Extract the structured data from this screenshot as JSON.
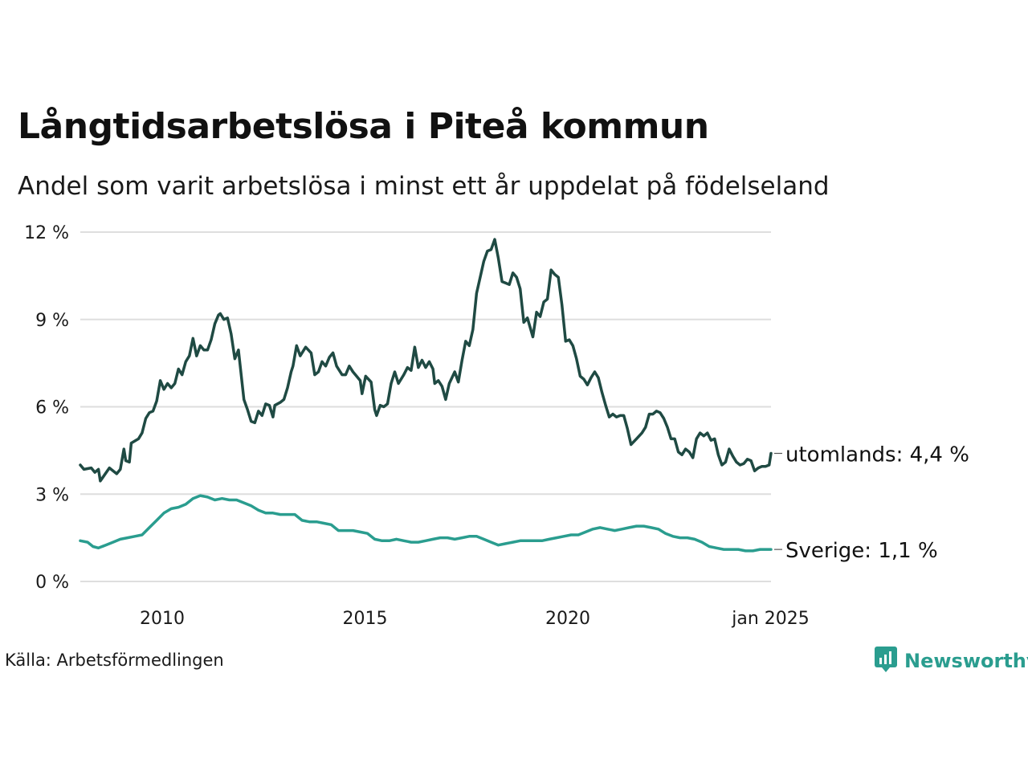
{
  "title": "Långtidsarbetslösa i Piteå kommun",
  "subtitle": "Andel som varit arbetslösa i minst ett år uppdelat på födelseland",
  "source": "Källa: Arbetsförmedlingen",
  "brand": {
    "name": "Newsworthy",
    "color": "#2a9d8f"
  },
  "chart_data": {
    "type": "line",
    "x_start": 2008.0,
    "x_end": 2025.0,
    "x_ticks": [
      {
        "x": 2010,
        "label": "2010"
      },
      {
        "x": 2015,
        "label": "2015"
      },
      {
        "x": 2020,
        "label": "2020"
      },
      {
        "x": 2025,
        "label": "jan 2025"
      }
    ],
    "ylim": [
      0,
      12
    ],
    "y_ticks": [
      {
        "y": 0,
        "label": "0 %"
      },
      {
        "y": 3,
        "label": "3 %"
      },
      {
        "y": 6,
        "label": "6 %"
      },
      {
        "y": 9,
        "label": "9 %"
      },
      {
        "y": 12,
        "label": "12 %"
      }
    ],
    "grid": true,
    "series": [
      {
        "name": "utomlands",
        "end_label": "utomlands: 4,4 %",
        "color": "#1f4a43",
        "points": [
          [
            2008.0,
            4.0
          ],
          [
            2008.1,
            3.85
          ],
          [
            2008.3,
            3.9
          ],
          [
            2008.4,
            3.75
          ],
          [
            2008.5,
            3.85
          ],
          [
            2008.55,
            3.45
          ],
          [
            2008.8,
            3.9
          ],
          [
            2009.0,
            3.7
          ],
          [
            2009.1,
            3.85
          ],
          [
            2009.2,
            4.55
          ],
          [
            2009.25,
            4.15
          ],
          [
            2009.35,
            4.1
          ],
          [
            2009.4,
            4.75
          ],
          [
            2009.6,
            4.9
          ],
          [
            2009.7,
            5.1
          ],
          [
            2009.8,
            5.6
          ],
          [
            2009.9,
            5.8
          ],
          [
            2010.0,
            5.85
          ],
          [
            2010.1,
            6.2
          ],
          [
            2010.2,
            6.9
          ],
          [
            2010.3,
            6.6
          ],
          [
            2010.4,
            6.8
          ],
          [
            2010.5,
            6.65
          ],
          [
            2010.6,
            6.8
          ],
          [
            2010.7,
            7.3
          ],
          [
            2010.8,
            7.1
          ],
          [
            2010.9,
            7.55
          ],
          [
            2011.0,
            7.75
          ],
          [
            2011.1,
            8.35
          ],
          [
            2011.2,
            7.75
          ],
          [
            2011.3,
            8.1
          ],
          [
            2011.4,
            7.95
          ],
          [
            2011.5,
            7.95
          ],
          [
            2011.6,
            8.3
          ],
          [
            2011.7,
            8.85
          ],
          [
            2011.8,
            9.15
          ],
          [
            2011.85,
            9.2
          ],
          [
            2011.95,
            9.0
          ],
          [
            2012.05,
            9.05
          ],
          [
            2012.15,
            8.5
          ],
          [
            2012.25,
            7.65
          ],
          [
            2012.35,
            7.95
          ],
          [
            2012.5,
            6.25
          ],
          [
            2012.6,
            5.9
          ],
          [
            2012.7,
            5.5
          ],
          [
            2012.8,
            5.45
          ],
          [
            2012.9,
            5.85
          ],
          [
            2013.0,
            5.7
          ],
          [
            2013.1,
            6.1
          ],
          [
            2013.2,
            6.05
          ],
          [
            2013.3,
            5.65
          ],
          [
            2013.35,
            6.05
          ],
          [
            2013.5,
            6.15
          ],
          [
            2013.6,
            6.25
          ],
          [
            2013.7,
            6.65
          ],
          [
            2013.8,
            7.2
          ],
          [
            2013.85,
            7.4
          ],
          [
            2013.95,
            8.1
          ],
          [
            2014.05,
            7.75
          ],
          [
            2014.2,
            8.05
          ],
          [
            2014.35,
            7.85
          ],
          [
            2014.45,
            7.1
          ],
          [
            2014.55,
            7.2
          ],
          [
            2014.65,
            7.55
          ],
          [
            2014.75,
            7.4
          ],
          [
            2014.85,
            7.7
          ],
          [
            2014.95,
            7.85
          ],
          [
            2015.05,
            7.4
          ],
          [
            2015.2,
            7.1
          ],
          [
            2015.3,
            7.1
          ],
          [
            2015.4,
            7.4
          ],
          [
            2015.5,
            7.2
          ],
          [
            2015.6,
            7.05
          ],
          [
            2015.7,
            6.9
          ],
          [
            2015.75,
            6.45
          ],
          [
            2015.85,
            7.05
          ],
          [
            2016.0,
            6.85
          ],
          [
            2016.1,
            5.9
          ],
          [
            2016.15,
            5.7
          ],
          [
            2016.25,
            6.05
          ],
          [
            2016.35,
            6.0
          ],
          [
            2016.45,
            6.1
          ],
          [
            2016.55,
            6.8
          ],
          [
            2016.65,
            7.2
          ],
          [
            2016.75,
            6.8
          ],
          [
            2016.9,
            7.1
          ],
          [
            2017.0,
            7.35
          ],
          [
            2017.1,
            7.25
          ],
          [
            2017.2,
            8.05
          ],
          [
            2017.3,
            7.35
          ],
          [
            2017.4,
            7.6
          ],
          [
            2017.5,
            7.35
          ],
          [
            2017.6,
            7.55
          ],
          [
            2017.7,
            7.3
          ],
          [
            2017.75,
            6.8
          ],
          [
            2017.85,
            6.9
          ],
          [
            2017.95,
            6.7
          ],
          [
            2018.05,
            6.25
          ],
          [
            2018.15,
            6.8
          ],
          [
            2018.3,
            7.2
          ],
          [
            2018.4,
            6.85
          ],
          [
            2018.5,
            7.6
          ],
          [
            2018.6,
            8.25
          ],
          [
            2018.7,
            8.1
          ],
          [
            2018.8,
            8.65
          ],
          [
            2018.9,
            9.9
          ],
          [
            2019.0,
            10.45
          ],
          [
            2019.1,
            11.0
          ],
          [
            2019.2,
            11.35
          ],
          [
            2019.3,
            11.4
          ],
          [
            2019.4,
            11.75
          ],
          [
            2019.5,
            11.1
          ],
          [
            2019.6,
            10.3
          ],
          [
            2019.7,
            10.25
          ],
          [
            2019.8,
            10.2
          ],
          [
            2019.9,
            10.6
          ],
          [
            2020.0,
            10.45
          ],
          [
            2020.1,
            10.05
          ],
          [
            2020.2,
            8.9
          ],
          [
            2020.3,
            9.05
          ],
          [
            2020.45,
            8.4
          ],
          [
            2020.55,
            9.25
          ],
          [
            2020.65,
            9.1
          ],
          [
            2020.75,
            9.6
          ],
          [
            2020.85,
            9.7
          ],
          [
            2020.95,
            10.7
          ],
          [
            2021.05,
            10.55
          ],
          [
            2021.15,
            10.45
          ],
          [
            2021.25,
            9.5
          ],
          [
            2021.35,
            8.25
          ],
          [
            2021.45,
            8.3
          ],
          [
            2021.55,
            8.1
          ],
          [
            2021.65,
            7.65
          ],
          [
            2021.75,
            7.05
          ],
          [
            2021.85,
            6.95
          ],
          [
            2021.95,
            6.75
          ],
          [
            2022.05,
            7.0
          ],
          [
            2022.15,
            7.2
          ],
          [
            2022.25,
            7.0
          ],
          [
            2022.35,
            6.5
          ],
          [
            2022.45,
            6.05
          ],
          [
            2022.55,
            5.65
          ],
          [
            2022.65,
            5.75
          ],
          [
            2022.75,
            5.65
          ],
          [
            2022.85,
            5.7
          ],
          [
            2022.95,
            5.7
          ],
          [
            2023.05,
            5.25
          ],
          [
            2023.15,
            4.7
          ],
          [
            2023.3,
            4.9
          ],
          [
            2023.45,
            5.1
          ],
          [
            2023.55,
            5.3
          ],
          [
            2023.65,
            5.75
          ],
          [
            2023.75,
            5.75
          ],
          [
            2023.85,
            5.85
          ],
          [
            2023.95,
            5.8
          ],
          [
            2024.05,
            5.6
          ],
          [
            2024.15,
            5.3
          ],
          [
            2024.25,
            4.9
          ],
          [
            2024.35,
            4.9
          ],
          [
            2024.45,
            4.45
          ],
          [
            2024.55,
            4.35
          ],
          [
            2024.65,
            4.55
          ],
          [
            2024.75,
            4.45
          ],
          [
            2024.85,
            4.25
          ],
          [
            2024.95,
            4.9
          ],
          [
            2025.05,
            5.1
          ],
          [
            2025.15,
            5.0
          ],
          [
            2025.25,
            5.1
          ],
          [
            2025.35,
            4.85
          ],
          [
            2025.45,
            4.9
          ],
          [
            2025.55,
            4.35
          ],
          [
            2025.65,
            4.0
          ],
          [
            2025.75,
            4.1
          ],
          [
            2025.85,
            4.55
          ],
          [
            2025.95,
            4.3
          ],
          [
            2026.05,
            4.1
          ],
          [
            2026.15,
            4.0
          ],
          [
            2026.25,
            4.05
          ],
          [
            2026.35,
            4.2
          ],
          [
            2026.45,
            4.15
          ],
          [
            2026.55,
            3.8
          ],
          [
            2026.65,
            3.9
          ],
          [
            2026.75,
            3.95
          ],
          [
            2026.85,
            3.95
          ],
          [
            2026.95,
            4.0
          ],
          [
            2027.0,
            4.4
          ]
        ]
      },
      {
        "name": "Sverige",
        "end_label": "Sverige: 1,1 %",
        "color": "#2a9d8f",
        "points": [
          [
            2008.0,
            1.4
          ],
          [
            2008.2,
            1.35
          ],
          [
            2008.35,
            1.2
          ],
          [
            2008.5,
            1.15
          ],
          [
            2008.7,
            1.25
          ],
          [
            2008.9,
            1.35
          ],
          [
            2009.1,
            1.45
          ],
          [
            2009.3,
            1.5
          ],
          [
            2009.5,
            1.55
          ],
          [
            2009.7,
            1.6
          ],
          [
            2009.9,
            1.85
          ],
          [
            2010.1,
            2.1
          ],
          [
            2010.3,
            2.35
          ],
          [
            2010.5,
            2.5
          ],
          [
            2010.7,
            2.55
          ],
          [
            2010.9,
            2.65
          ],
          [
            2011.1,
            2.85
          ],
          [
            2011.3,
            2.95
          ],
          [
            2011.5,
            2.9
          ],
          [
            2011.7,
            2.8
          ],
          [
            2011.9,
            2.85
          ],
          [
            2012.1,
            2.8
          ],
          [
            2012.3,
            2.8
          ],
          [
            2012.5,
            2.7
          ],
          [
            2012.7,
            2.6
          ],
          [
            2012.9,
            2.45
          ],
          [
            2013.1,
            2.35
          ],
          [
            2013.3,
            2.35
          ],
          [
            2013.5,
            2.3
          ],
          [
            2013.7,
            2.3
          ],
          [
            2013.9,
            2.3
          ],
          [
            2014.1,
            2.1
          ],
          [
            2014.3,
            2.05
          ],
          [
            2014.5,
            2.05
          ],
          [
            2014.7,
            2.0
          ],
          [
            2014.9,
            1.95
          ],
          [
            2015.1,
            1.75
          ],
          [
            2015.3,
            1.75
          ],
          [
            2015.5,
            1.75
          ],
          [
            2015.7,
            1.7
          ],
          [
            2015.9,
            1.65
          ],
          [
            2016.1,
            1.45
          ],
          [
            2016.3,
            1.4
          ],
          [
            2016.5,
            1.4
          ],
          [
            2016.7,
            1.45
          ],
          [
            2016.9,
            1.4
          ],
          [
            2017.1,
            1.35
          ],
          [
            2017.3,
            1.35
          ],
          [
            2017.5,
            1.4
          ],
          [
            2017.7,
            1.45
          ],
          [
            2017.9,
            1.5
          ],
          [
            2018.1,
            1.5
          ],
          [
            2018.3,
            1.45
          ],
          [
            2018.5,
            1.5
          ],
          [
            2018.7,
            1.55
          ],
          [
            2018.9,
            1.55
          ],
          [
            2019.1,
            1.45
          ],
          [
            2019.3,
            1.35
          ],
          [
            2019.5,
            1.25
          ],
          [
            2019.7,
            1.3
          ],
          [
            2019.9,
            1.35
          ],
          [
            2020.1,
            1.4
          ],
          [
            2020.3,
            1.4
          ],
          [
            2020.5,
            1.4
          ],
          [
            2020.7,
            1.4
          ],
          [
            2020.9,
            1.45
          ],
          [
            2021.1,
            1.5
          ],
          [
            2021.3,
            1.55
          ],
          [
            2021.5,
            1.6
          ],
          [
            2021.7,
            1.6
          ],
          [
            2021.9,
            1.7
          ],
          [
            2022.1,
            1.8
          ],
          [
            2022.3,
            1.85
          ],
          [
            2022.5,
            1.8
          ],
          [
            2022.7,
            1.75
          ],
          [
            2022.9,
            1.8
          ],
          [
            2023.1,
            1.85
          ],
          [
            2023.3,
            1.9
          ],
          [
            2023.5,
            1.9
          ],
          [
            2023.7,
            1.85
          ],
          [
            2023.9,
            1.8
          ],
          [
            2024.1,
            1.65
          ],
          [
            2024.3,
            1.55
          ],
          [
            2024.5,
            1.5
          ],
          [
            2024.7,
            1.5
          ],
          [
            2024.9,
            1.45
          ],
          [
            2025.1,
            1.35
          ],
          [
            2025.3,
            1.2
          ],
          [
            2025.5,
            1.15
          ],
          [
            2025.7,
            1.1
          ],
          [
            2025.9,
            1.1
          ],
          [
            2026.1,
            1.1
          ],
          [
            2026.3,
            1.05
          ],
          [
            2026.5,
            1.05
          ],
          [
            2026.7,
            1.1
          ],
          [
            2026.9,
            1.1
          ],
          [
            2027.0,
            1.1
          ]
        ]
      }
    ]
  }
}
